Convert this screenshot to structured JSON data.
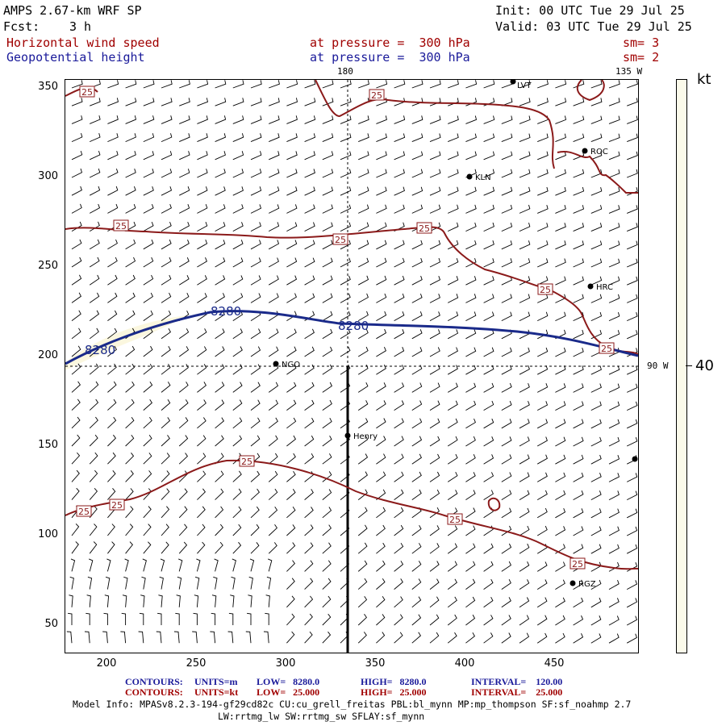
{
  "header": {
    "model": "AMPS 2.67-km WRF SP",
    "init": "Init: 00 UTC Tue 29 Jul 25",
    "fcst_label": "Fcst:",
    "fcst_value": "3 h",
    "valid": "Valid: 03 UTC Tue 29 Jul 25"
  },
  "fields": [
    {
      "name": "Horizontal wind speed",
      "level": "at pressure =  300 hPa",
      "sm": "sm= 3",
      "color": "#a00000"
    },
    {
      "name": "Geopotential height",
      "level": "at pressure =  300 hPa",
      "sm": "sm= 2",
      "color": "#1a1a9a"
    }
  ],
  "axes": {
    "x_ticks": [
      "200",
      "250",
      "300",
      "350",
      "400",
      "450"
    ],
    "y_ticks": [
      "350",
      "300",
      "250",
      "200",
      "150",
      "100",
      "50"
    ],
    "meridian_labels": {
      "top": "180",
      "top_right": "135 W",
      "right": "90 W"
    }
  },
  "colorbar": {
    "unit": "kt",
    "value": "40",
    "color": "#fbfaea"
  },
  "stations": [
    {
      "name": "KLN"
    },
    {
      "name": "ROC"
    },
    {
      "name": "HRC"
    },
    {
      "name": "NGO"
    },
    {
      "name": "Henry"
    },
    {
      "name": "RGZ"
    },
    {
      "name": "LVT"
    }
  ],
  "contour_labels": {
    "height": "8280",
    "wind": "25"
  },
  "footer": {
    "line1": {
      "prefix": "CONTOURS:",
      "units": "UNITS=m",
      "low": "LOW=   8280.0",
      "high": "HIGH=   8280.0",
      "interval": "INTERVAL=    120.00",
      "color": "#1a1a9a"
    },
    "line2": {
      "prefix": "CONTOURS:",
      "units": "UNITS=kt",
      "low": "LOW=   25.000",
      "high": "HIGH=   25.000",
      "interval": "INTERVAL=    25.000",
      "color": "#a00000"
    },
    "model_info": "Model Info: MPASv8.2.3-194-gf29cd82c CU:cu_grell_freitas PBL:bl_mynn MP:mp_thompson SF:sf_noahmp 2.7",
    "model_info2": "LW:rrtmg_lw SW:rrtmg_sw SFLAY:sf_mynn"
  }
}
